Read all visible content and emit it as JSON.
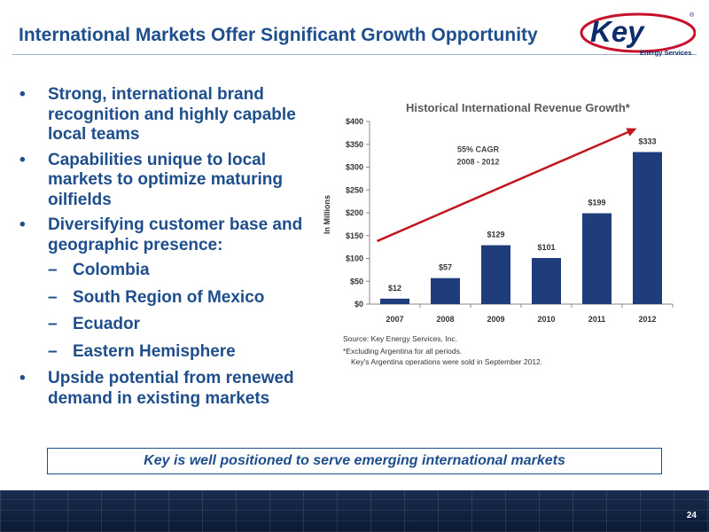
{
  "slide": {
    "title": "International Markets Offer Significant Growth Opportunity",
    "page_number": "24"
  },
  "logo": {
    "name": "Key",
    "registered": "®",
    "subtitle": "Energy Services",
    "colors": {
      "navy": "#0d2c6c",
      "red": "#c8102e"
    }
  },
  "bullets": [
    {
      "level": 1,
      "text": "Strong, international brand recognition and highly capable local teams"
    },
    {
      "level": 1,
      "text": "Capabilities unique to local markets to optimize maturing oilfields"
    },
    {
      "level": 1,
      "text": "Diversifying customer base and geographic presence:"
    },
    {
      "level": 2,
      "text": "Colombia"
    },
    {
      "level": 2,
      "text": "South Region of Mexico"
    },
    {
      "level": 2,
      "text": "Ecuador"
    },
    {
      "level": 2,
      "text": "Eastern Hemisphere"
    },
    {
      "level": 1,
      "text": "Upside potential from renewed demand in existing markets"
    }
  ],
  "bullet_marks": {
    "level1": "•",
    "level2": "–"
  },
  "chart_data": {
    "type": "bar",
    "title": "Historical International Revenue Growth*",
    "ylabel": "In Millions",
    "xlabel": "",
    "categories": [
      "2007",
      "2008",
      "2009",
      "2010",
      "2011",
      "2012"
    ],
    "values": [
      12,
      57,
      129,
      101,
      199,
      333
    ],
    "data_labels": [
      "$12",
      "$57",
      "$129",
      "$101",
      "$199",
      "$333"
    ],
    "ylim": [
      0,
      400
    ],
    "yticks": [
      0,
      50,
      100,
      150,
      200,
      250,
      300,
      350,
      400
    ],
    "ytick_labels": [
      "$0",
      "$50",
      "$100",
      "$150",
      "$200",
      "$250",
      "$300",
      "$350",
      "$400"
    ],
    "grid": false,
    "bar_color": "#1f3d7a",
    "trend_arrow": {
      "color": "#c0161e",
      "from": {
        "x": "2007",
        "y": 138
      },
      "to": {
        "x": "2012",
        "y": 385
      }
    },
    "annotation": {
      "line1": "55% CAGR",
      "line2": "2008 - 2012"
    }
  },
  "notes": {
    "source": "Source: Key Energy Services, Inc.",
    "footnote1": "*Excluding Argentina for all periods.",
    "footnote2": "Key's Argentina operations were sold in September 2012."
  },
  "callout": "Key is well positioned to serve emerging international markets"
}
